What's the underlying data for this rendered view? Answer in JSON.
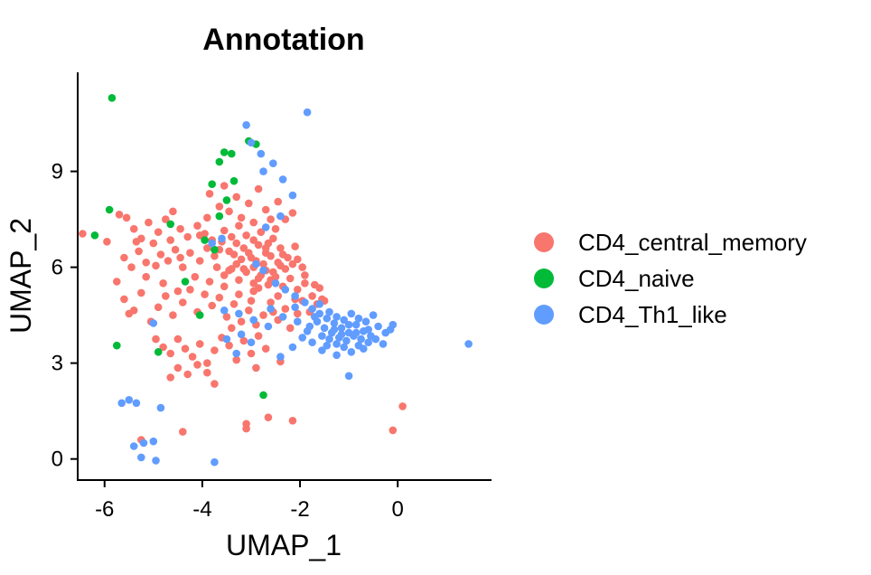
{
  "chart_data": {
    "type": "scatter",
    "title": "Annotation",
    "xlabel": "UMAP_1",
    "ylabel": "UMAP_2",
    "xlim": [
      -6.55,
      1.92
    ],
    "ylim": [
      -0.66,
      12.1
    ],
    "x_ticks": [
      -6,
      -4,
      -2,
      0
    ],
    "y_ticks": [
      0,
      3,
      6,
      9
    ],
    "x_tick_labels": [
      "-6",
      "-4",
      "-2",
      "0"
    ],
    "y_tick_labels": [
      "0",
      "3",
      "6",
      "9"
    ],
    "grid": false,
    "legend_position": "right",
    "series": [
      {
        "name": "CD4_central_memory",
        "color": "#F8766D",
        "points": [
          [
            -6.45,
            7.05
          ],
          [
            -5.95,
            6.8
          ],
          [
            -5.7,
            7.65
          ],
          [
            -5.55,
            7.55
          ],
          [
            -5.4,
            7.2
          ],
          [
            -5.25,
            6.9
          ],
          [
            -5.1,
            7.4
          ],
          [
            -4.9,
            7.1
          ],
          [
            -4.75,
            7.5
          ],
          [
            -4.6,
            7.75
          ],
          [
            -4.45,
            7.2
          ],
          [
            -4.3,
            6.95
          ],
          [
            -4.1,
            7.3
          ],
          [
            -3.95,
            7.05
          ],
          [
            -3.8,
            6.85
          ],
          [
            -5.6,
            6.3
          ],
          [
            -5.45,
            6.0
          ],
          [
            -5.3,
            6.5
          ],
          [
            -5.15,
            6.15
          ],
          [
            -5.0,
            6.75
          ],
          [
            -4.85,
            6.4
          ],
          [
            -4.7,
            6.2
          ],
          [
            -4.55,
            6.55
          ],
          [
            -4.4,
            6.0
          ],
          [
            -4.25,
            6.45
          ],
          [
            -4.05,
            6.2
          ],
          [
            -3.9,
            6.6
          ],
          [
            -3.75,
            6.35
          ],
          [
            -3.6,
            6.8
          ],
          [
            -3.45,
            6.5
          ],
          [
            -3.3,
            6.1
          ],
          [
            -3.15,
            6.6
          ],
          [
            -3.0,
            6.3
          ],
          [
            -2.85,
            6.7
          ],
          [
            -2.7,
            6.45
          ],
          [
            -2.55,
            6.9
          ],
          [
            -2.4,
            6.6
          ],
          [
            -2.25,
            6.3
          ],
          [
            -2.1,
            6.65
          ],
          [
            -1.95,
            6.0
          ],
          [
            -3.55,
            7.15
          ],
          [
            -3.4,
            6.95
          ],
          [
            -3.25,
            7.3
          ],
          [
            -3.1,
            7.0
          ],
          [
            -2.95,
            6.85
          ],
          [
            -2.8,
            7.1
          ],
          [
            -2.65,
            6.75
          ],
          [
            -2.5,
            7.2
          ],
          [
            -3.7,
            6.0
          ],
          [
            -3.55,
            5.75
          ],
          [
            -3.4,
            5.95
          ],
          [
            -3.25,
            5.6
          ],
          [
            -3.1,
            5.85
          ],
          [
            -2.95,
            5.5
          ],
          [
            -2.8,
            5.75
          ],
          [
            -2.65,
            5.45
          ],
          [
            -2.5,
            5.7
          ],
          [
            -2.35,
            5.4
          ],
          [
            -2.2,
            5.65
          ],
          [
            -2.05,
            5.3
          ],
          [
            -1.9,
            5.5
          ],
          [
            -1.75,
            5.1
          ],
          [
            -1.6,
            5.35
          ],
          [
            -1.5,
            4.95
          ],
          [
            -3.05,
            6.45
          ],
          [
            -2.9,
            6.2
          ],
          [
            -2.75,
            6.1
          ],
          [
            -2.6,
            6.35
          ],
          [
            -2.45,
            6.15
          ],
          [
            -2.3,
            5.95
          ],
          [
            -2.15,
            6.1
          ],
          [
            -3.2,
            6.25
          ],
          [
            -3.35,
            6.4
          ],
          [
            -2.7,
            5.9
          ],
          [
            -2.55,
            5.85
          ],
          [
            -2.4,
            6.05
          ],
          [
            -2.95,
            6.0
          ],
          [
            -3.15,
            5.95
          ],
          [
            -2.85,
            5.65
          ],
          [
            -2.6,
            5.6
          ],
          [
            -5.75,
            5.55
          ],
          [
            -5.6,
            5.0
          ],
          [
            -5.4,
            4.65
          ],
          [
            -5.25,
            5.2
          ],
          [
            -5.5,
            4.55
          ],
          [
            -5.05,
            4.3
          ],
          [
            -4.9,
            4.75
          ],
          [
            -4.75,
            5.1
          ],
          [
            -4.6,
            4.5
          ],
          [
            -4.4,
            4.9
          ],
          [
            -4.25,
            5.3
          ],
          [
            -4.1,
            4.6
          ],
          [
            -3.95,
            5.15
          ],
          [
            -3.8,
            4.8
          ],
          [
            -3.65,
            5.05
          ],
          [
            -3.5,
            4.45
          ],
          [
            -3.35,
            4.85
          ],
          [
            -3.2,
            4.3
          ],
          [
            -3.05,
            4.65
          ],
          [
            -2.9,
            4.2
          ],
          [
            -2.75,
            4.5
          ],
          [
            -2.6,
            4.9
          ],
          [
            -2.45,
            4.35
          ],
          [
            -2.3,
            4.7
          ],
          [
            -4.95,
            3.75
          ],
          [
            -4.8,
            3.5
          ],
          [
            -4.65,
            3.3
          ],
          [
            -4.5,
            3.75
          ],
          [
            -4.35,
            3.45
          ],
          [
            -4.2,
            3.2
          ],
          [
            -4.05,
            3.6
          ],
          [
            -3.9,
            3.0
          ],
          [
            -3.75,
            3.4
          ],
          [
            -3.6,
            3.8
          ],
          [
            -3.45,
            3.55
          ],
          [
            -3.3,
            3.1
          ],
          [
            -3.15,
            3.7
          ],
          [
            -3.0,
            3.3
          ],
          [
            -2.85,
            3.85
          ],
          [
            -2.7,
            3.45
          ],
          [
            -4.65,
            2.55
          ],
          [
            -4.5,
            2.85
          ],
          [
            -4.3,
            2.65
          ],
          [
            -4.1,
            2.95
          ],
          [
            -3.9,
            2.7
          ],
          [
            -3.75,
            2.35
          ],
          [
            -2.9,
            2.85
          ],
          [
            -2.4,
            3.05
          ],
          [
            -3.1,
            1.1
          ],
          [
            -2.65,
            1.3
          ],
          [
            -2.15,
            1.2
          ],
          [
            -4.4,
            0.85
          ],
          [
            -3.1,
            0.95
          ],
          [
            -5.25,
            0.6
          ],
          [
            0.1,
            1.65
          ],
          [
            -0.1,
            0.9
          ],
          [
            -3.55,
            8.55
          ],
          [
            -3.3,
            8.2
          ],
          [
            -3.05,
            8.0
          ],
          [
            -2.85,
            8.45
          ],
          [
            -2.7,
            7.8
          ],
          [
            -2.45,
            8.05
          ],
          [
            -2.6,
            7.5
          ],
          [
            -3.45,
            7.75
          ],
          [
            -3.2,
            7.55
          ],
          [
            -2.95,
            7.4
          ],
          [
            -2.3,
            7.5
          ],
          [
            -2.15,
            7.7
          ],
          [
            -3.85,
            8.3
          ],
          [
            -3.65,
            7.9
          ],
          [
            -2.2,
            4.1
          ],
          [
            -2.05,
            4.55
          ],
          [
            -1.95,
            4.95
          ],
          [
            -1.8,
            4.6
          ],
          [
            -1.65,
            4.85
          ],
          [
            -2.1,
            5.0
          ],
          [
            -2.45,
            5.1
          ],
          [
            -2.95,
            5.25
          ],
          [
            -3.55,
            5.4
          ],
          [
            -4.15,
            5.7
          ],
          [
            -4.45,
            6.3
          ],
          [
            -4.95,
            6.05
          ],
          [
            -5.15,
            5.7
          ],
          [
            -4.8,
            5.5
          ],
          [
            -4.5,
            5.25
          ],
          [
            -3.85,
            5.55
          ],
          [
            -3.45,
            5.9
          ],
          [
            -3.65,
            6.55
          ],
          [
            -4.05,
            7.0
          ],
          [
            -4.65,
            6.85
          ],
          [
            -5.35,
            6.8
          ],
          [
            -3.9,
            7.55
          ],
          [
            -3.3,
            6.75
          ],
          [
            -2.7,
            6.6
          ],
          [
            -2.05,
            6.25
          ],
          [
            -1.9,
            5.75
          ],
          [
            -1.7,
            5.45
          ],
          [
            -1.55,
            5.0
          ],
          [
            -2.35,
            6.4
          ],
          [
            -2.85,
            5.35
          ],
          [
            -3.25,
            5.15
          ],
          [
            -2.55,
            4.6
          ],
          [
            -3.0,
            4.95
          ],
          [
            -3.4,
            4.1
          ]
        ]
      },
      {
        "name": "CD4_naive",
        "color": "#00BA38",
        "points": [
          [
            -5.85,
            11.3
          ],
          [
            -3.55,
            9.6
          ],
          [
            -3.4,
            9.55
          ],
          [
            -3.65,
            9.3
          ],
          [
            -3.05,
            9.95
          ],
          [
            -2.9,
            9.85
          ],
          [
            -3.8,
            8.6
          ],
          [
            -3.5,
            8.1
          ],
          [
            -3.35,
            8.7
          ],
          [
            -4.65,
            7.35
          ],
          [
            -3.95,
            6.85
          ],
          [
            -3.75,
            6.55
          ],
          [
            -6.2,
            7.0
          ],
          [
            -5.9,
            7.8
          ],
          [
            -5.75,
            3.55
          ],
          [
            -4.9,
            3.35
          ],
          [
            -4.05,
            4.5
          ],
          [
            -2.75,
            2.0
          ],
          [
            -3.65,
            7.6
          ],
          [
            -4.35,
            5.55
          ]
        ]
      },
      {
        "name": "CD4_Th1_like",
        "color": "#619CFF",
        "points": [
          [
            -3.1,
            10.45
          ],
          [
            -3.0,
            9.9
          ],
          [
            -2.8,
            9.55
          ],
          [
            -2.55,
            9.25
          ],
          [
            -2.75,
            9.0
          ],
          [
            -2.35,
            8.75
          ],
          [
            -2.15,
            8.25
          ],
          [
            -2.4,
            7.6
          ],
          [
            -2.7,
            7.25
          ],
          [
            -1.85,
            10.85
          ],
          [
            -3.6,
            6.9
          ],
          [
            -3.8,
            6.75
          ],
          [
            -2.9,
            6.1
          ],
          [
            -2.75,
            5.9
          ],
          [
            -2.5,
            5.5
          ],
          [
            -2.3,
            5.3
          ],
          [
            -2.1,
            5.1
          ],
          [
            -1.9,
            4.9
          ],
          [
            -1.75,
            4.7
          ],
          [
            -1.6,
            4.55
          ],
          [
            -1.45,
            4.4
          ],
          [
            -1.3,
            4.25
          ],
          [
            -1.15,
            4.1
          ],
          [
            -1.0,
            3.95
          ],
          [
            -0.85,
            4.2
          ],
          [
            -0.7,
            4.0
          ],
          [
            -0.55,
            3.85
          ],
          [
            -0.4,
            4.15
          ],
          [
            -0.25,
            3.95
          ],
          [
            -1.4,
            4.6
          ],
          [
            -1.25,
            4.45
          ],
          [
            -1.1,
            4.35
          ],
          [
            -0.95,
            4.55
          ],
          [
            -0.8,
            4.4
          ],
          [
            -0.65,
            4.3
          ],
          [
            -0.5,
            4.5
          ],
          [
            -1.5,
            4.1
          ],
          [
            -1.35,
            3.95
          ],
          [
            -1.2,
            3.8
          ],
          [
            -1.05,
            3.7
          ],
          [
            -0.9,
            3.85
          ],
          [
            -0.75,
            3.75
          ],
          [
            -0.6,
            3.65
          ],
          [
            -1.65,
            4.3
          ],
          [
            -1.8,
            4.15
          ],
          [
            -1.55,
            3.85
          ],
          [
            -1.4,
            3.75
          ],
          [
            -1.25,
            3.6
          ],
          [
            -1.1,
            3.5
          ],
          [
            -0.95,
            3.35
          ],
          [
            -0.8,
            3.55
          ],
          [
            -1.7,
            4.45
          ],
          [
            -1.85,
            4.0
          ],
          [
            -1.3,
            4.05
          ],
          [
            -1.15,
            3.9
          ],
          [
            -1.0,
            4.2
          ],
          [
            -0.85,
            3.95
          ],
          [
            -0.7,
            3.45
          ],
          [
            -1.45,
            3.55
          ],
          [
            -1.95,
            3.8
          ],
          [
            -2.05,
            4.3
          ],
          [
            -0.3,
            3.6
          ],
          [
            -0.15,
            4.05
          ],
          [
            1.45,
            3.6
          ],
          [
            -0.1,
            4.2
          ],
          [
            -1.25,
            3.25
          ],
          [
            -1.0,
            2.6
          ],
          [
            -2.15,
            3.5
          ],
          [
            -2.4,
            3.2
          ],
          [
            -3.3,
            3.3
          ],
          [
            -3.5,
            3.75
          ],
          [
            -2.95,
            4.35
          ],
          [
            -3.25,
            4.55
          ],
          [
            -3.0,
            3.65
          ],
          [
            -5.0,
            4.25
          ],
          [
            -5.65,
            1.75
          ],
          [
            -5.5,
            1.85
          ],
          [
            -5.35,
            1.75
          ],
          [
            -4.85,
            1.6
          ],
          [
            -5.2,
            0.5
          ],
          [
            -5.4,
            0.4
          ],
          [
            -5.0,
            0.55
          ],
          [
            -5.25,
            0.05
          ],
          [
            -4.95,
            -0.05
          ],
          [
            -3.75,
            -0.1
          ],
          [
            -3.2,
            3.9
          ],
          [
            -2.65,
            4.15
          ],
          [
            -2.35,
            4.45
          ],
          [
            -3.55,
            4.65
          ],
          [
            -2.1,
            4.75
          ],
          [
            -1.6,
            4.85
          ],
          [
            -0.6,
            4.05
          ],
          [
            -0.45,
            3.75
          ],
          [
            -1.55,
            3.4
          ],
          [
            -1.75,
            3.65
          ],
          [
            -2.6,
            4.7
          ]
        ]
      }
    ]
  }
}
